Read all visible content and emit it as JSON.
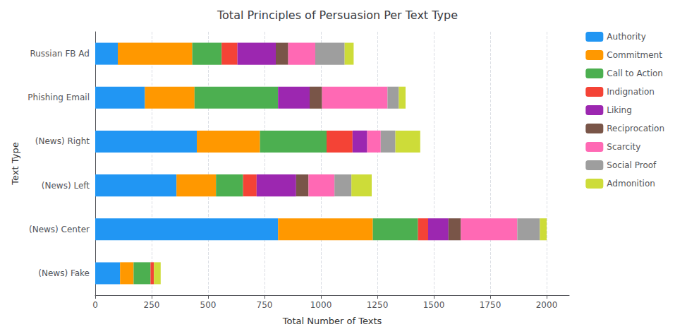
{
  "chart_data": {
    "type": "bar",
    "orientation": "horizontal",
    "stacked": true,
    "title": "Total Principles of Persuasion Per Text Type",
    "xlabel": "Total Number of Texts",
    "ylabel": "Text Type",
    "categories": [
      "Russian FB Ad",
      "Phishing Email",
      "(News) Right",
      "(News) Left",
      "(News) Center",
      "(News) Fake"
    ],
    "series": [
      {
        "name": "Authority",
        "color": "#2196F3",
        "values": [
          100,
          220,
          450,
          360,
          810,
          110
        ]
      },
      {
        "name": "Commitment",
        "color": "#FF9800",
        "values": [
          330,
          220,
          280,
          175,
          420,
          60
        ]
      },
      {
        "name": "Call to Action",
        "color": "#4CAF50",
        "values": [
          130,
          370,
          295,
          120,
          200,
          75
        ]
      },
      {
        "name": "Indignation",
        "color": "#F44336",
        "values": [
          70,
          0,
          115,
          60,
          45,
          15
        ]
      },
      {
        "name": "Liking",
        "color": "#9C27B0",
        "values": [
          170,
          140,
          65,
          175,
          90,
          0
        ]
      },
      {
        "name": "Reciprocation",
        "color": "#795548",
        "values": [
          55,
          55,
          0,
          55,
          55,
          0
        ]
      },
      {
        "name": "Scarcity",
        "color": "#FF69B4",
        "values": [
          120,
          290,
          60,
          115,
          250,
          0
        ]
      },
      {
        "name": "Social Proof",
        "color": "#9E9E9E",
        "values": [
          130,
          50,
          65,
          75,
          100,
          0
        ]
      },
      {
        "name": "Admonition",
        "color": "#CDDC39",
        "values": [
          40,
          30,
          110,
          90,
          30,
          30
        ]
      }
    ],
    "xlim": [
      0,
      2100
    ],
    "xticks": [
      0,
      250,
      500,
      750,
      1000,
      1250,
      1500,
      1750,
      2000
    ],
    "grid": true,
    "legend": "right"
  }
}
